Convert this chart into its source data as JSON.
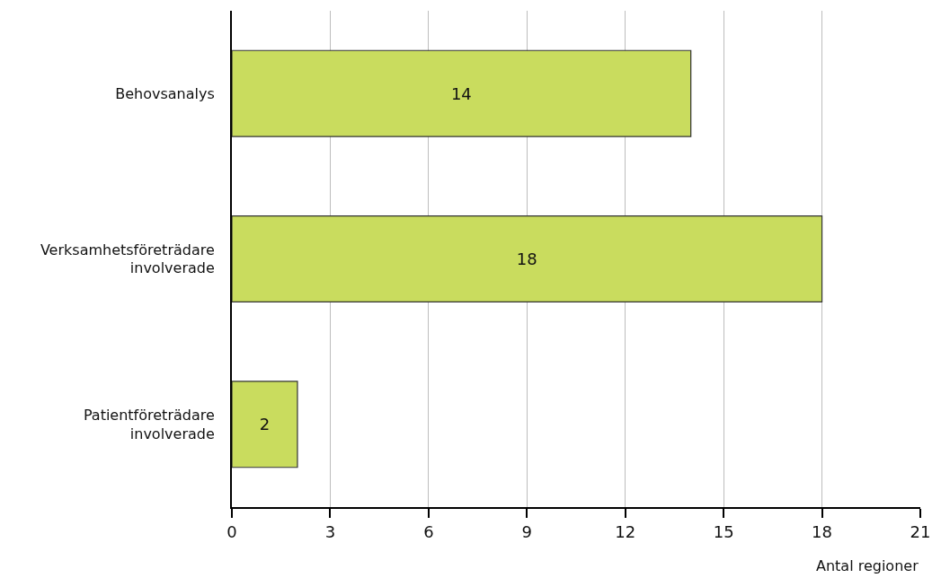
{
  "chart_data": {
    "type": "bar",
    "orientation": "horizontal",
    "categories": [
      "Behovsanalys",
      "Verksamhetsföreträdare involverade",
      "Patientföreträdare involverade"
    ],
    "values": [
      14,
      18,
      2
    ],
    "color": "#c9dc5e",
    "xlabel": "Antal regioner",
    "xlim": [
      0,
      21
    ],
    "xticks": [
      0,
      3,
      6,
      9,
      12,
      15,
      18,
      21
    ],
    "grid": "x",
    "data_labels": true
  }
}
